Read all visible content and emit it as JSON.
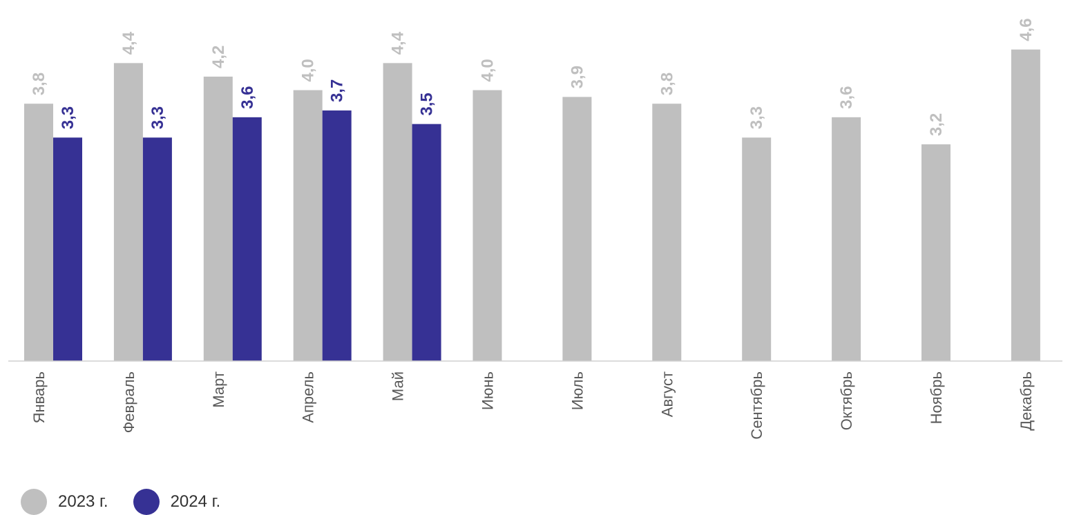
{
  "chart_data": {
    "type": "bar",
    "categories": [
      "Январь",
      "Февраль",
      "Март",
      "Апрель",
      "Май",
      "Июнь",
      "Июль",
      "Август",
      "Сентябрь",
      "Октябрь",
      "Ноябрь",
      "Декабрь"
    ],
    "series": [
      {
        "name": "2023 г.",
        "color": "#bfbfbf",
        "values": [
          3.8,
          4.4,
          4.2,
          4.0,
          4.4,
          4.0,
          3.9,
          3.8,
          3.3,
          3.6,
          3.2,
          4.6
        ],
        "labels": [
          "3,8",
          "4,4",
          "4,2",
          "4,0",
          "4,4",
          "4,0",
          "3,9",
          "3,8",
          "3,3",
          "3,6",
          "3,2",
          "4,6"
        ]
      },
      {
        "name": "2024 г.",
        "color": "#363194",
        "values": [
          3.3,
          3.3,
          3.6,
          3.7,
          3.5,
          null,
          null,
          null,
          null,
          null,
          null,
          null
        ],
        "labels": [
          "3,3",
          "3,3",
          "3,6",
          "3,7",
          "3,5",
          "",
          "",
          "",
          "",
          "",
          "",
          ""
        ]
      }
    ],
    "title": "",
    "xlabel": "",
    "ylabel": "",
    "legend_position": "bottom-left",
    "grid": false
  }
}
